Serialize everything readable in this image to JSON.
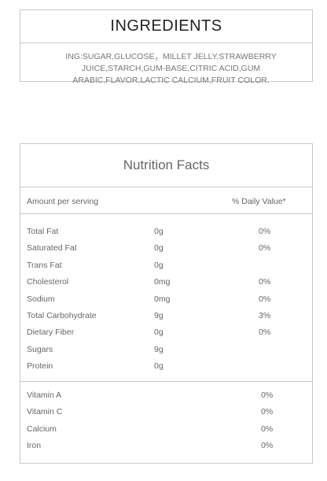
{
  "ingredients": {
    "title": "INGREDIENTS",
    "text": "ING:SUGAR,GLUCOSE，MILLET JELLY,STRAWBERRY JUICE,STARCH,GUM-BASE,CITRIC ACID,GUM ARABIC,FLAVOR,LACTIC CALCIUM,FRUIT COLOR."
  },
  "nutrition": {
    "title": "Nutrition Facts",
    "header_left": "Amount per serving",
    "header_right": "% Daily Value*",
    "nutrients": [
      {
        "name": "Total Fat",
        "amount": "0g",
        "dv": "0%"
      },
      {
        "name": "Saturated Fat",
        "amount": "0g",
        "dv": "0%"
      },
      {
        "name": "Trans Fat",
        "amount": "0g",
        "dv": ""
      },
      {
        "name": "Cholesterol",
        "amount": "0mg",
        "dv": "0%"
      },
      {
        "name": "Sodium",
        "amount": "0mg",
        "dv": "0%"
      },
      {
        "name": "Total Carbohydrate",
        "amount": "9g",
        "dv": "3%"
      },
      {
        "name": "Dietary Fiber",
        "amount": "0g",
        "dv": "0%"
      },
      {
        "name": "Sugars",
        "amount": "9g",
        "dv": ""
      },
      {
        "name": "Protein",
        "amount": "0g",
        "dv": ""
      }
    ],
    "vitamins": [
      {
        "name": "Vitamin A",
        "dv": "0%"
      },
      {
        "name": "Vitamin C",
        "dv": "0%"
      },
      {
        "name": "Calcium",
        "dv": "0%"
      },
      {
        "name": "Iron",
        "dv": "0%"
      }
    ]
  }
}
